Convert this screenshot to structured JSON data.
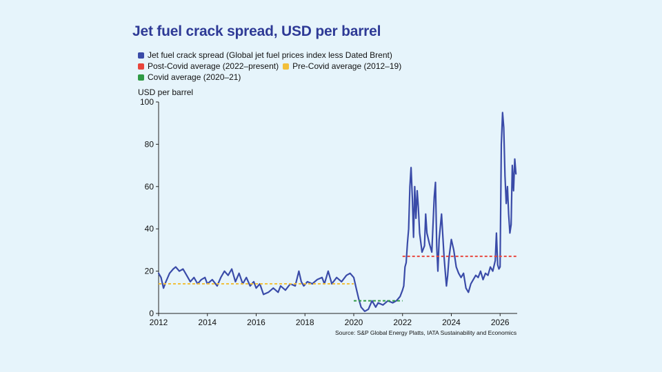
{
  "title": "Jet fuel crack spread, USD per barrel",
  "legend": {
    "series_jet": "Jet fuel crack spread (Global jet fuel prices index less Dated Brent)",
    "post_covid": "Post-Covid average (2022–present)",
    "pre_covid": "Pre-Covid average (2012–19)",
    "covid": "Covid average (2020–21)"
  },
  "source": "Source: S&P Global Energy Platts, IATA Sustainability and Economics",
  "colors": {
    "background": "#e6f4fb",
    "title": "#2e3a96",
    "series": "#3a4ba8",
    "post_covid": "#e8453c",
    "pre_covid": "#f2bf3a",
    "covid": "#2f9a45"
  },
  "chart_data": {
    "type": "line",
    "ylabel": "USD per barrel",
    "xlim": [
      2012,
      2026.7
    ],
    "ylim": [
      0,
      100
    ],
    "x_ticks": [
      "2012",
      "2014",
      "2016",
      "2018",
      "2020",
      "2022",
      "2024",
      "2026"
    ],
    "y_ticks": [
      "0",
      "20",
      "40",
      "60",
      "80",
      "100"
    ],
    "grid": false,
    "legend_position": "top-left",
    "series": [
      {
        "name": "Jet fuel crack spread (Global jet fuel prices index less Dated Brent)",
        "x": [
          2012.0,
          2012.1,
          2012.2,
          2012.3,
          2012.45,
          2012.6,
          2012.7,
          2012.85,
          2013.0,
          2013.15,
          2013.3,
          2013.45,
          2013.6,
          2013.75,
          2013.9,
          2014.0,
          2014.2,
          2014.4,
          2014.55,
          2014.7,
          2014.85,
          2015.0,
          2015.15,
          2015.3,
          2015.45,
          2015.6,
          2015.75,
          2015.9,
          2016.0,
          2016.15,
          2016.3,
          2016.5,
          2016.7,
          2016.9,
          2017.0,
          2017.2,
          2017.4,
          2017.6,
          2017.75,
          2017.85,
          2017.95,
          2018.1,
          2018.3,
          2018.5,
          2018.7,
          2018.8,
          2018.95,
          2019.1,
          2019.3,
          2019.5,
          2019.7,
          2019.85,
          2020.0,
          2020.1,
          2020.2,
          2020.3,
          2020.45,
          2020.6,
          2020.75,
          2020.9,
          2021.0,
          2021.2,
          2021.4,
          2021.6,
          2021.75,
          2021.9,
          2022.0,
          2022.05,
          2022.1,
          2022.15,
          2022.2,
          2022.25,
          2022.3,
          2022.35,
          2022.4,
          2022.45,
          2022.5,
          2022.55,
          2022.6,
          2022.65,
          2022.7,
          2022.8,
          2022.9,
          2022.95,
          2023.0,
          2023.1,
          2023.2,
          2023.3,
          2023.35,
          2023.4,
          2023.45,
          2023.5,
          2023.6,
          2023.7,
          2023.75,
          2023.8,
          2023.85,
          2023.9,
          2024.0,
          2024.1,
          2024.2,
          2024.3,
          2024.4,
          2024.5,
          2024.6,
          2024.7,
          2024.8,
          2024.9,
          2025.0,
          2025.1,
          2025.2,
          2025.3,
          2025.4,
          2025.5,
          2025.6,
          2025.7,
          2025.8,
          2025.85,
          2025.9,
          2025.95,
          2026.0,
          2026.05,
          2026.1,
          2026.15,
          2026.2,
          2026.25,
          2026.3,
          2026.35,
          2026.4,
          2026.45,
          2026.5,
          2026.55,
          2026.6,
          2026.65
        ],
        "y": [
          19,
          17,
          12,
          15,
          19,
          21,
          22,
          20,
          21,
          18,
          15,
          17,
          14,
          16,
          17,
          14,
          16,
          13,
          17,
          20,
          18,
          21,
          15,
          19,
          14,
          17,
          13,
          15,
          12,
          14,
          9,
          10,
          12,
          10,
          13,
          11,
          14,
          13,
          20,
          15,
          13,
          15,
          14,
          16,
          17,
          14,
          20,
          14,
          17,
          15,
          18,
          19,
          17,
          12,
          7,
          3,
          1,
          2,
          6,
          3,
          5,
          4,
          6,
          5,
          6,
          8,
          11,
          13,
          22,
          24,
          33,
          40,
          60,
          69,
          55,
          36,
          60,
          45,
          58,
          50,
          38,
          29,
          32,
          47,
          38,
          33,
          29,
          55,
          62,
          32,
          20,
          35,
          47,
          27,
          20,
          13,
          18,
          26,
          35,
          30,
          22,
          19,
          17,
          19,
          12,
          10,
          14,
          16,
          18,
          17,
          20,
          16,
          19,
          18,
          22,
          20,
          25,
          38,
          23,
          21,
          22,
          80,
          95,
          88,
          65,
          52,
          60,
          47,
          38,
          42,
          70,
          58,
          73,
          66
        ]
      },
      {
        "name": "Pre-Covid average (2012–19)",
        "x": [
          2012,
          2020
        ],
        "y": [
          14,
          14
        ]
      },
      {
        "name": "Covid average (2020–21)",
        "x": [
          2020,
          2022
        ],
        "y": [
          6,
          6
        ]
      },
      {
        "name": "Post-Covid average (2022–present)",
        "x": [
          2022,
          2026.7
        ],
        "y": [
          27,
          27
        ]
      }
    ]
  }
}
